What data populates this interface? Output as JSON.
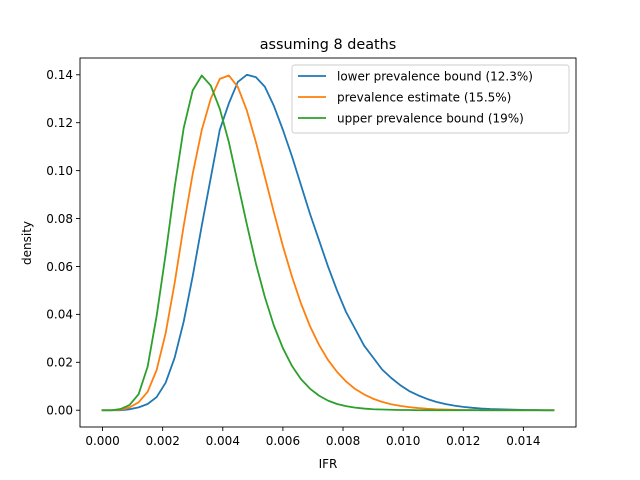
{
  "chart_data": {
    "type": "line",
    "title": "assuming 8 deaths",
    "xlabel": "IFR",
    "ylabel": "density",
    "xlim": [
      -0.00075,
      0.01575
    ],
    "ylim": [
      -0.007,
      0.147
    ],
    "xticks": [
      0.0,
      0.002,
      0.004,
      0.006,
      0.008,
      0.01,
      0.012,
      0.014
    ],
    "xtick_labels": [
      "0.000",
      "0.002",
      "0.004",
      "0.006",
      "0.008",
      "0.010",
      "0.012",
      "0.014"
    ],
    "yticks": [
      0.0,
      0.02,
      0.04,
      0.06,
      0.08,
      0.1,
      0.12,
      0.14
    ],
    "ytick_labels": [
      "0.00",
      "0.02",
      "0.04",
      "0.06",
      "0.08",
      "0.10",
      "0.12",
      "0.14"
    ],
    "grid": false,
    "legend_position": "top-right",
    "x": [
      0.0,
      0.0003,
      0.0006,
      0.0009,
      0.0012,
      0.0015,
      0.0018,
      0.0021,
      0.0024,
      0.0027,
      0.003,
      0.0033,
      0.0036,
      0.0039,
      0.0042,
      0.0045,
      0.0048,
      0.0051,
      0.0054,
      0.0057,
      0.006,
      0.0063,
      0.0066,
      0.0069,
      0.0072,
      0.0075,
      0.0078,
      0.0081,
      0.0084,
      0.0087,
      0.009,
      0.0093,
      0.0096,
      0.0099,
      0.0102,
      0.0105,
      0.0108,
      0.0111,
      0.0114,
      0.0117,
      0.012,
      0.0123,
      0.0126,
      0.0129,
      0.0132,
      0.0135,
      0.0138,
      0.0141,
      0.0144,
      0.0147,
      0.015
    ],
    "series": [
      {
        "name": "lower prevalence bound (12.3%)",
        "color": "#1f77b4",
        "values": [
          0.0,
          0.0,
          0.0,
          0.0004,
          0.0012,
          0.0026,
          0.0055,
          0.0115,
          0.022,
          0.037,
          0.056,
          0.077,
          0.097,
          0.117,
          0.128,
          0.137,
          0.14,
          0.139,
          0.135,
          0.127,
          0.117,
          0.106,
          0.094,
          0.082,
          0.071,
          0.06,
          0.05,
          0.041,
          0.034,
          0.027,
          0.022,
          0.017,
          0.0135,
          0.0105,
          0.008,
          0.0062,
          0.0047,
          0.0035,
          0.0026,
          0.0019,
          0.0014,
          0.001,
          0.0007,
          0.0005,
          0.0004,
          0.0003,
          0.0002,
          0.0001,
          0.0001,
          0.0,
          0.0
        ]
      },
      {
        "name": "prevalence estimate (15.5%)",
        "color": "#ff7f0e",
        "values": [
          0.0,
          0.0,
          0.0002,
          0.0012,
          0.0033,
          0.0077,
          0.0168,
          0.0322,
          0.0532,
          0.077,
          0.0987,
          0.1169,
          0.13,
          0.1383,
          0.1397,
          0.1349,
          0.1251,
          0.112,
          0.0974,
          0.0826,
          0.0685,
          0.0558,
          0.0446,
          0.0351,
          0.0273,
          0.021,
          0.016,
          0.012,
          0.0089,
          0.0066,
          0.0048,
          0.0035,
          0.0025,
          0.0018,
          0.0013,
          0.0009,
          0.0006,
          0.0004,
          0.0003,
          0.0002,
          0.0001,
          0.0001,
          0.0,
          0.0,
          0.0,
          0.0,
          0.0,
          0.0,
          0.0,
          0.0,
          0.0
        ]
      },
      {
        "name": "upper prevalence bound (19%)",
        "color": "#2ca02c",
        "values": [
          0.0,
          0.0,
          0.0005,
          0.0022,
          0.0067,
          0.0182,
          0.0394,
          0.0652,
          0.0932,
          0.1178,
          0.1335,
          0.1397,
          0.1355,
          0.1258,
          0.112,
          0.0947,
          0.0776,
          0.0613,
          0.0472,
          0.0353,
          0.0259,
          0.0185,
          0.013,
          0.009,
          0.0061,
          0.004,
          0.0026,
          0.0017,
          0.0011,
          0.0007,
          0.0004,
          0.0003,
          0.0002,
          0.0001,
          0.0001,
          0.0,
          0.0,
          0.0,
          0.0,
          0.0,
          0.0,
          0.0,
          0.0,
          0.0,
          0.0,
          0.0,
          0.0,
          0.0,
          0.0,
          0.0,
          0.0
        ]
      }
    ]
  }
}
